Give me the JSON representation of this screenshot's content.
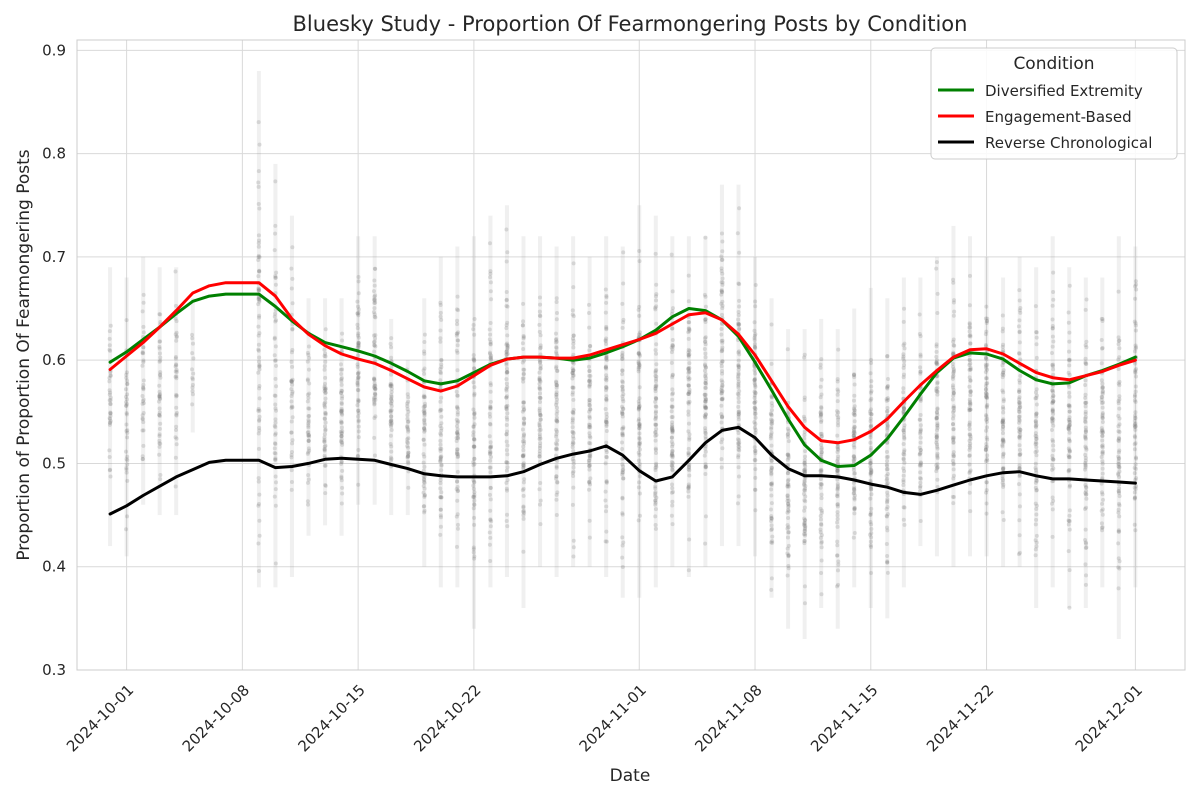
{
  "chart_data": {
    "type": "line",
    "title": "Bluesky Study - Proportion Of Fearmongering Posts by Condition",
    "xlabel": "Date",
    "ylabel": "Proportion of Proportion Of Fearmongering Posts",
    "xlim": [
      "2024-09-28",
      "2024-12-04"
    ],
    "ylim": [
      0.3,
      0.91
    ],
    "x_ticks": [
      "2024-10-01",
      "2024-10-08",
      "2024-10-15",
      "2024-10-22",
      "2024-11-01",
      "2024-11-08",
      "2024-11-15",
      "2024-11-22",
      "2024-12-01"
    ],
    "y_ticks": [
      0.3,
      0.4,
      0.5,
      0.6,
      0.7,
      0.8,
      0.9
    ],
    "grid": true,
    "legend": {
      "title": "Condition",
      "placement": "top-right"
    },
    "dates": [
      "2024-09-30",
      "2024-10-01",
      "2024-10-02",
      "2024-10-03",
      "2024-10-04",
      "2024-10-05",
      "2024-10-06",
      "2024-10-07",
      "2024-10-09",
      "2024-10-10",
      "2024-10-11",
      "2024-10-12",
      "2024-10-13",
      "2024-10-14",
      "2024-10-15",
      "2024-10-16",
      "2024-10-17",
      "2024-10-18",
      "2024-10-19",
      "2024-10-20",
      "2024-10-21",
      "2024-10-22",
      "2024-10-23",
      "2024-10-24",
      "2024-10-25",
      "2024-10-26",
      "2024-10-27",
      "2024-10-28",
      "2024-10-29",
      "2024-10-30",
      "2024-10-31",
      "2024-11-01",
      "2024-11-02",
      "2024-11-03",
      "2024-11-04",
      "2024-11-05",
      "2024-11-06",
      "2024-11-07",
      "2024-11-08",
      "2024-11-09",
      "2024-11-10",
      "2024-11-11",
      "2024-11-12",
      "2024-11-13",
      "2024-11-14",
      "2024-11-15",
      "2024-11-16",
      "2024-11-17",
      "2024-11-18",
      "2024-11-19",
      "2024-11-20",
      "2024-11-21",
      "2024-11-22",
      "2024-11-23",
      "2024-11-24",
      "2024-11-25",
      "2024-11-26",
      "2024-11-27",
      "2024-11-28",
      "2024-11-29",
      "2024-11-30",
      "2024-12-01"
    ],
    "series": [
      {
        "name": "Diversified Extremity",
        "color": "#008000",
        "values": [
          0.598,
          0.608,
          0.62,
          0.632,
          0.645,
          0.657,
          0.662,
          0.664,
          0.664,
          0.652,
          0.638,
          0.626,
          0.617,
          0.613,
          0.609,
          0.604,
          0.597,
          0.589,
          0.58,
          0.577,
          0.58,
          0.588,
          0.596,
          0.601,
          0.603,
          0.603,
          0.602,
          0.6,
          0.602,
          0.607,
          0.613,
          0.62,
          0.629,
          0.642,
          0.65,
          0.648,
          0.639,
          0.623,
          0.598,
          0.571,
          0.543,
          0.518,
          0.503,
          0.497,
          0.498,
          0.508,
          0.524,
          0.545,
          0.567,
          0.588,
          0.602,
          0.607,
          0.606,
          0.601,
          0.59,
          0.581,
          0.577,
          0.578,
          0.585,
          0.59,
          0.596,
          0.603
        ]
      },
      {
        "name": "Engagement-Based",
        "color": "#ff0000",
        "values": [
          0.591,
          0.604,
          0.617,
          0.632,
          0.648,
          0.665,
          0.672,
          0.675,
          0.675,
          0.662,
          0.64,
          0.625,
          0.614,
          0.606,
          0.601,
          0.597,
          0.59,
          0.582,
          0.574,
          0.57,
          0.575,
          0.585,
          0.595,
          0.601,
          0.603,
          0.603,
          0.602,
          0.602,
          0.605,
          0.61,
          0.615,
          0.62,
          0.626,
          0.635,
          0.644,
          0.646,
          0.639,
          0.625,
          0.605,
          0.58,
          0.555,
          0.535,
          0.522,
          0.52,
          0.523,
          0.531,
          0.543,
          0.56,
          0.576,
          0.59,
          0.603,
          0.61,
          0.611,
          0.606,
          0.597,
          0.588,
          0.583,
          0.581,
          0.585,
          0.589,
          0.595,
          0.6
        ]
      },
      {
        "name": "Reverse Chronological",
        "color": "#000000",
        "values": [
          0.451,
          0.459,
          0.469,
          0.478,
          0.487,
          0.494,
          0.501,
          0.503,
          0.503,
          0.496,
          0.497,
          0.5,
          0.504,
          0.505,
          0.504,
          0.503,
          0.499,
          0.495,
          0.49,
          0.488,
          0.487,
          0.487,
          0.487,
          0.488,
          0.492,
          0.499,
          0.505,
          0.509,
          0.512,
          0.517,
          0.508,
          0.493,
          0.483,
          0.487,
          0.503,
          0.52,
          0.532,
          0.535,
          0.525,
          0.508,
          0.495,
          0.488,
          0.488,
          0.487,
          0.484,
          0.48,
          0.477,
          0.472,
          0.47,
          0.474,
          0.479,
          0.484,
          0.488,
          0.491,
          0.492,
          0.488,
          0.485,
          0.485,
          0.484,
          0.483,
          0.482,
          0.481
        ]
      }
    ],
    "scatter": {
      "color": "#808080",
      "note": "",
      "columns": [
        {
          "date": "2024-09-30",
          "min": 0.42,
          "max": 0.69,
          "density": 0.5
        },
        {
          "date": "2024-10-01",
          "min": 0.41,
          "max": 0.68,
          "density": 0.5
        },
        {
          "date": "2024-10-02",
          "min": 0.46,
          "max": 0.7,
          "density": 0.5
        },
        {
          "date": "2024-10-03",
          "min": 0.45,
          "max": 0.69,
          "density": 0.6
        },
        {
          "date": "2024-10-04",
          "min": 0.45,
          "max": 0.69,
          "density": 0.5
        },
        {
          "date": "2024-10-05",
          "min": 0.53,
          "max": 0.66,
          "density": 0.2
        },
        {
          "date": "2024-10-09",
          "min": 0.38,
          "max": 0.88,
          "density": 1.0
        },
        {
          "date": "2024-10-10",
          "min": 0.38,
          "max": 0.79,
          "density": 0.7
        },
        {
          "date": "2024-10-11",
          "min": 0.39,
          "max": 0.74,
          "density": 0.6
        },
        {
          "date": "2024-10-12",
          "min": 0.43,
          "max": 0.66,
          "density": 0.6
        },
        {
          "date": "2024-10-13",
          "min": 0.44,
          "max": 0.66,
          "density": 0.7
        },
        {
          "date": "2024-10-14",
          "min": 0.43,
          "max": 0.66,
          "density": 0.8
        },
        {
          "date": "2024-10-15",
          "min": 0.46,
          "max": 0.72,
          "density": 0.8
        },
        {
          "date": "2024-10-16",
          "min": 0.46,
          "max": 0.72,
          "density": 0.8
        },
        {
          "date": "2024-10-17",
          "min": 0.45,
          "max": 0.64,
          "density": 0.7
        },
        {
          "date": "2024-10-18",
          "min": 0.45,
          "max": 0.6,
          "density": 0.5
        },
        {
          "date": "2024-10-19",
          "min": 0.4,
          "max": 0.66,
          "density": 0.8
        },
        {
          "date": "2024-10-20",
          "min": 0.38,
          "max": 0.7,
          "density": 0.9
        },
        {
          "date": "2024-10-21",
          "min": 0.38,
          "max": 0.71,
          "density": 0.9
        },
        {
          "date": "2024-10-22",
          "min": 0.34,
          "max": 0.72,
          "density": 0.9
        },
        {
          "date": "2024-10-23",
          "min": 0.38,
          "max": 0.74,
          "density": 0.9
        },
        {
          "date": "2024-10-24",
          "min": 0.39,
          "max": 0.75,
          "density": 1.0
        },
        {
          "date": "2024-10-25",
          "min": 0.36,
          "max": 0.72,
          "density": 0.9
        },
        {
          "date": "2024-10-26",
          "min": 0.4,
          "max": 0.72,
          "density": 0.9
        },
        {
          "date": "2024-10-27",
          "min": 0.39,
          "max": 0.71,
          "density": 0.9
        },
        {
          "date": "2024-10-28",
          "min": 0.4,
          "max": 0.72,
          "density": 0.9
        },
        {
          "date": "2024-10-29",
          "min": 0.4,
          "max": 0.7,
          "density": 0.9
        },
        {
          "date": "2024-10-30",
          "min": 0.39,
          "max": 0.72,
          "density": 0.9
        },
        {
          "date": "2024-10-31",
          "min": 0.37,
          "max": 0.71,
          "density": 0.9
        },
        {
          "date": "2024-11-01",
          "min": 0.37,
          "max": 0.75,
          "density": 1.0
        },
        {
          "date": "2024-11-02",
          "min": 0.38,
          "max": 0.74,
          "density": 1.0
        },
        {
          "date": "2024-11-03",
          "min": 0.4,
          "max": 0.72,
          "density": 1.0
        },
        {
          "date": "2024-11-04",
          "min": 0.39,
          "max": 0.72,
          "density": 1.0
        },
        {
          "date": "2024-11-05",
          "min": 0.4,
          "max": 0.72,
          "density": 1.0
        },
        {
          "date": "2024-11-06",
          "min": 0.42,
          "max": 0.77,
          "density": 1.0
        },
        {
          "date": "2024-11-07",
          "min": 0.42,
          "max": 0.77,
          "density": 1.0
        },
        {
          "date": "2024-11-08",
          "min": 0.41,
          "max": 0.7,
          "density": 0.9
        },
        {
          "date": "2024-11-09",
          "min": 0.37,
          "max": 0.66,
          "density": 0.9
        },
        {
          "date": "2024-11-10",
          "min": 0.34,
          "max": 0.63,
          "density": 0.9
        },
        {
          "date": "2024-11-11",
          "min": 0.33,
          "max": 0.63,
          "density": 0.9
        },
        {
          "date": "2024-11-12",
          "min": 0.36,
          "max": 0.64,
          "density": 0.9
        },
        {
          "date": "2024-11-13",
          "min": 0.34,
          "max": 0.63,
          "density": 0.9
        },
        {
          "date": "2024-11-14",
          "min": 0.38,
          "max": 0.65,
          "density": 0.9
        },
        {
          "date": "2024-11-15",
          "min": 0.36,
          "max": 0.67,
          "density": 0.9
        },
        {
          "date": "2024-11-16",
          "min": 0.35,
          "max": 0.66,
          "density": 0.9
        },
        {
          "date": "2024-11-17",
          "min": 0.38,
          "max": 0.68,
          "density": 0.9
        },
        {
          "date": "2024-11-18",
          "min": 0.42,
          "max": 0.68,
          "density": 0.7
        },
        {
          "date": "2024-11-19",
          "min": 0.41,
          "max": 0.7,
          "density": 0.9
        },
        {
          "date": "2024-11-20",
          "min": 0.4,
          "max": 0.73,
          "density": 0.9
        },
        {
          "date": "2024-11-21",
          "min": 0.41,
          "max": 0.72,
          "density": 0.9
        },
        {
          "date": "2024-11-22",
          "min": 0.41,
          "max": 0.7,
          "density": 0.9
        },
        {
          "date": "2024-11-23",
          "min": 0.4,
          "max": 0.68,
          "density": 0.9
        },
        {
          "date": "2024-11-24",
          "min": 0.4,
          "max": 0.7,
          "density": 0.9
        },
        {
          "date": "2024-11-25",
          "min": 0.36,
          "max": 0.69,
          "density": 0.9
        },
        {
          "date": "2024-11-26",
          "min": 0.38,
          "max": 0.72,
          "density": 0.9
        },
        {
          "date": "2024-11-27",
          "min": 0.36,
          "max": 0.69,
          "density": 0.9
        },
        {
          "date": "2024-11-28",
          "min": 0.36,
          "max": 0.68,
          "density": 0.9
        },
        {
          "date": "2024-11-29",
          "min": 0.38,
          "max": 0.68,
          "density": 0.9
        },
        {
          "date": "2024-11-30",
          "min": 0.33,
          "max": 0.72,
          "density": 0.9
        },
        {
          "date": "2024-12-01",
          "min": 0.38,
          "max": 0.71,
          "density": 0.9
        }
      ]
    }
  }
}
